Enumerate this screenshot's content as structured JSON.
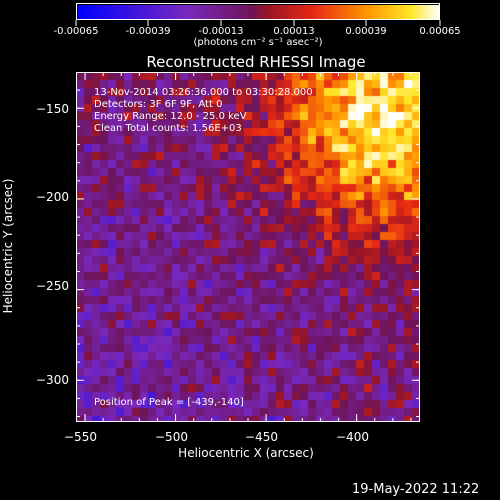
{
  "colorbar": {
    "tick_labels": [
      "-0.00065",
      "-0.00039",
      "-0.00013",
      "0.00013",
      "0.00039",
      "0.00065"
    ],
    "unit_label": "(photons cm⁻² s⁻¹ asec⁻²)"
  },
  "annotations": {
    "time_range": "13-Nov-2014 03:26:36.000 to 03:30:28.000",
    "detectors": "Detectors: 3F 6F 9F, Att 0",
    "energy_range": "Energy Range: 12.0 - 25.0 keV",
    "method": "Clean     Total counts: 1.56E+03",
    "peak_position": "Position of Peak = [-439,-140]"
  },
  "footer": {
    "date": "19-May-2022 11:22"
  },
  "colors": {
    "background": "#000000",
    "axis": "#ffffff"
  },
  "chart_data": {
    "type": "heatmap",
    "title": "Reconstructed RHESSI Image",
    "xlabel": "Heliocentric X (arcsec)",
    "ylabel": "Heliocentric Y (arcsec)",
    "xlim": [
      -555,
      -365
    ],
    "ylim": [
      -323,
      -130
    ],
    "x_ticks": [
      -550,
      -500,
      -450,
      -400
    ],
    "y_ticks": [
      -150,
      -200,
      -250,
      -300
    ],
    "x_tick_labels": [
      "−550",
      "−500",
      "−450",
      "−400"
    ],
    "y_tick_labels": [
      "−150",
      "−200",
      "−250",
      "−300"
    ],
    "value_range": [
      -0.00065,
      0.00065
    ],
    "colormap": "blue-purple-red-yellow-white",
    "peak": [
      -439,
      -140
    ],
    "grid": false
  }
}
